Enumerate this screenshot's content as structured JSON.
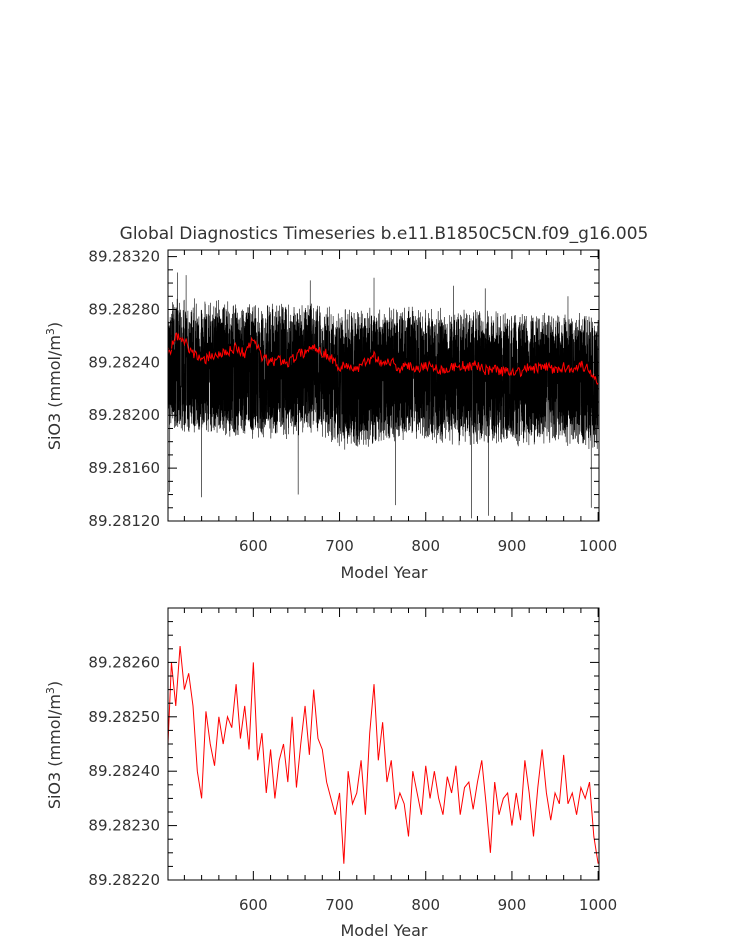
{
  "chart_data": [
    {
      "type": "line",
      "title": "Global Diagnostics Timeseries b.e11.B1850C5CN.f09_g16.005",
      "xlabel": "Model Year",
      "ylabel": "SiO3 (mmol/m",
      "ylabel_sup": "3",
      "ylabel_end": ")",
      "xlim": [
        501,
        1001
      ],
      "ylim": [
        89.2812,
        89.28325
      ],
      "x_ticks": [
        "600",
        "700",
        "800",
        "900",
        "1000"
      ],
      "y_ticks": [
        "89.28120",
        "89.28160",
        "89.28200",
        "89.28240",
        "89.28280",
        "89.28320"
      ],
      "series": [
        {
          "kind": "monthly-noise",
          "color": "#000000",
          "x": [
            501,
            525,
            550,
            575,
            600,
            625,
            650,
            675,
            700,
            725,
            750,
            775,
            800,
            825,
            850,
            875,
            900,
            925,
            950,
            975,
            1000
          ],
          "upper": [
            89.2829,
            89.2829,
            89.28288,
            89.28288,
            89.28286,
            89.28286,
            89.28285,
            89.28285,
            89.2828,
            89.28282,
            89.28283,
            89.28282,
            89.28283,
            89.28281,
            89.28282,
            89.28279,
            89.28279,
            89.28277,
            89.28279,
            89.28278,
            89.28277
          ],
          "lower": [
            89.2819,
            89.28186,
            89.28184,
            89.28182,
            89.2818,
            89.28182,
            89.28182,
            89.28182,
            89.28172,
            89.28173,
            89.28178,
            89.2818,
            89.28179,
            89.28177,
            89.28174,
            89.28176,
            89.28175,
            89.28177,
            89.28178,
            89.28175,
            89.28172
          ],
          "peaks": [
            [
              512,
              89.28308
            ],
            [
              522,
              89.28306
            ],
            [
              666,
              89.28302
            ],
            [
              740,
              89.28304
            ],
            [
              832,
              89.28298
            ],
            [
              869,
              89.28296
            ],
            [
              965,
              89.2829
            ]
          ],
          "troughs": [
            [
              503,
              89.28142
            ],
            [
              540,
              89.28138
            ],
            [
              652,
              89.2814
            ],
            [
              765,
              89.28132
            ],
            [
              853,
              89.28122
            ],
            [
              873,
              89.28124
            ],
            [
              992,
              89.2813
            ]
          ]
        },
        {
          "kind": "annual",
          "color": "#ff0000",
          "x": [
            501,
            510,
            520,
            530,
            540,
            550,
            560,
            570,
            580,
            590,
            600,
            610,
            620,
            630,
            640,
            650,
            660,
            670,
            680,
            690,
            700,
            710,
            720,
            730,
            740,
            750,
            760,
            770,
            780,
            790,
            800,
            810,
            820,
            830,
            840,
            850,
            860,
            870,
            880,
            890,
            900,
            910,
            920,
            930,
            940,
            950,
            960,
            970,
            980,
            990,
            1000
          ],
          "y": [
            89.28245,
            89.2826,
            89.28256,
            89.28248,
            89.2824,
            89.28245,
            89.28246,
            89.28247,
            89.28252,
            89.28246,
            89.28258,
            89.28244,
            89.2824,
            89.28242,
            89.2824,
            89.28245,
            89.28248,
            89.28252,
            89.28248,
            89.28244,
            89.28236,
            89.28238,
            89.28234,
            89.2824,
            89.28245,
            89.2824,
            89.28241,
            89.28235,
            89.28237,
            89.28236,
            89.28238,
            89.28236,
            89.28234,
            89.28236,
            89.28238,
            89.28236,
            89.28238,
            89.28234,
            89.28235,
            89.28233,
            89.28234,
            89.28233,
            89.28236,
            89.28235,
            89.28237,
            89.28234,
            89.28236,
            89.28236,
            89.28238,
            89.28234,
            89.28226
          ]
        }
      ]
    },
    {
      "type": "line",
      "title": "",
      "xlabel": "Model Year",
      "ylabel": "SiO3 (mmol/m",
      "ylabel_sup": "3",
      "ylabel_end": ")",
      "xlim": [
        501,
        1001
      ],
      "ylim": [
        89.2822,
        89.2827
      ],
      "x_ticks": [
        "600",
        "700",
        "800",
        "900",
        "1000"
      ],
      "y_ticks": [
        "89.28220",
        "89.28230",
        "89.28240",
        "89.28250",
        "89.28260"
      ],
      "series": [
        {
          "kind": "annual",
          "color": "#ff0000",
          "x": [
            501,
            505,
            510,
            515,
            520,
            525,
            530,
            535,
            540,
            545,
            550,
            555,
            560,
            565,
            570,
            575,
            580,
            585,
            590,
            595,
            600,
            605,
            610,
            615,
            620,
            625,
            630,
            635,
            640,
            645,
            650,
            655,
            660,
            665,
            670,
            675,
            680,
            685,
            690,
            695,
            700,
            705,
            710,
            715,
            720,
            725,
            730,
            735,
            740,
            745,
            750,
            755,
            760,
            765,
            770,
            775,
            780,
            785,
            790,
            795,
            800,
            805,
            810,
            815,
            820,
            825,
            830,
            835,
            840,
            845,
            850,
            855,
            860,
            865,
            870,
            875,
            880,
            885,
            890,
            895,
            900,
            905,
            910,
            915,
            920,
            925,
            930,
            935,
            940,
            945,
            950,
            955,
            960,
            965,
            970,
            975,
            980,
            985,
            990,
            995,
            1000
          ],
          "y": [
            89.28245,
            89.2826,
            89.28252,
            89.28263,
            89.28255,
            89.28258,
            89.28252,
            89.2824,
            89.28235,
            89.28251,
            89.28245,
            89.28241,
            89.2825,
            89.28245,
            89.2825,
            89.28248,
            89.28256,
            89.28246,
            89.28252,
            89.28244,
            89.2826,
            89.28242,
            89.28247,
            89.28236,
            89.28244,
            89.28235,
            89.28242,
            89.28245,
            89.28238,
            89.2825,
            89.28237,
            89.28245,
            89.28252,
            89.28243,
            89.28255,
            89.28246,
            89.28244,
            89.28238,
            89.28235,
            89.28232,
            89.28236,
            89.28223,
            89.2824,
            89.28234,
            89.28236,
            89.28242,
            89.28232,
            89.28247,
            89.28256,
            89.28242,
            89.28249,
            89.28238,
            89.28242,
            89.28233,
            89.28236,
            89.28234,
            89.28228,
            89.2824,
            89.28236,
            89.28232,
            89.28241,
            89.28235,
            89.2824,
            89.28235,
            89.28232,
            89.28239,
            89.28236,
            89.28241,
            89.28232,
            89.28237,
            89.28238,
            89.28233,
            89.28238,
            89.28242,
            89.28234,
            89.28225,
            89.28238,
            89.28232,
            89.28235,
            89.28236,
            89.2823,
            89.28236,
            89.28231,
            89.28242,
            89.28236,
            89.28228,
            89.28237,
            89.28244,
            89.28236,
            89.28231,
            89.28236,
            89.28234,
            89.28243,
            89.28234,
            89.28236,
            89.28232,
            89.28237,
            89.28235,
            89.28238,
            89.28228,
            89.28223
          ]
        }
      ]
    }
  ]
}
